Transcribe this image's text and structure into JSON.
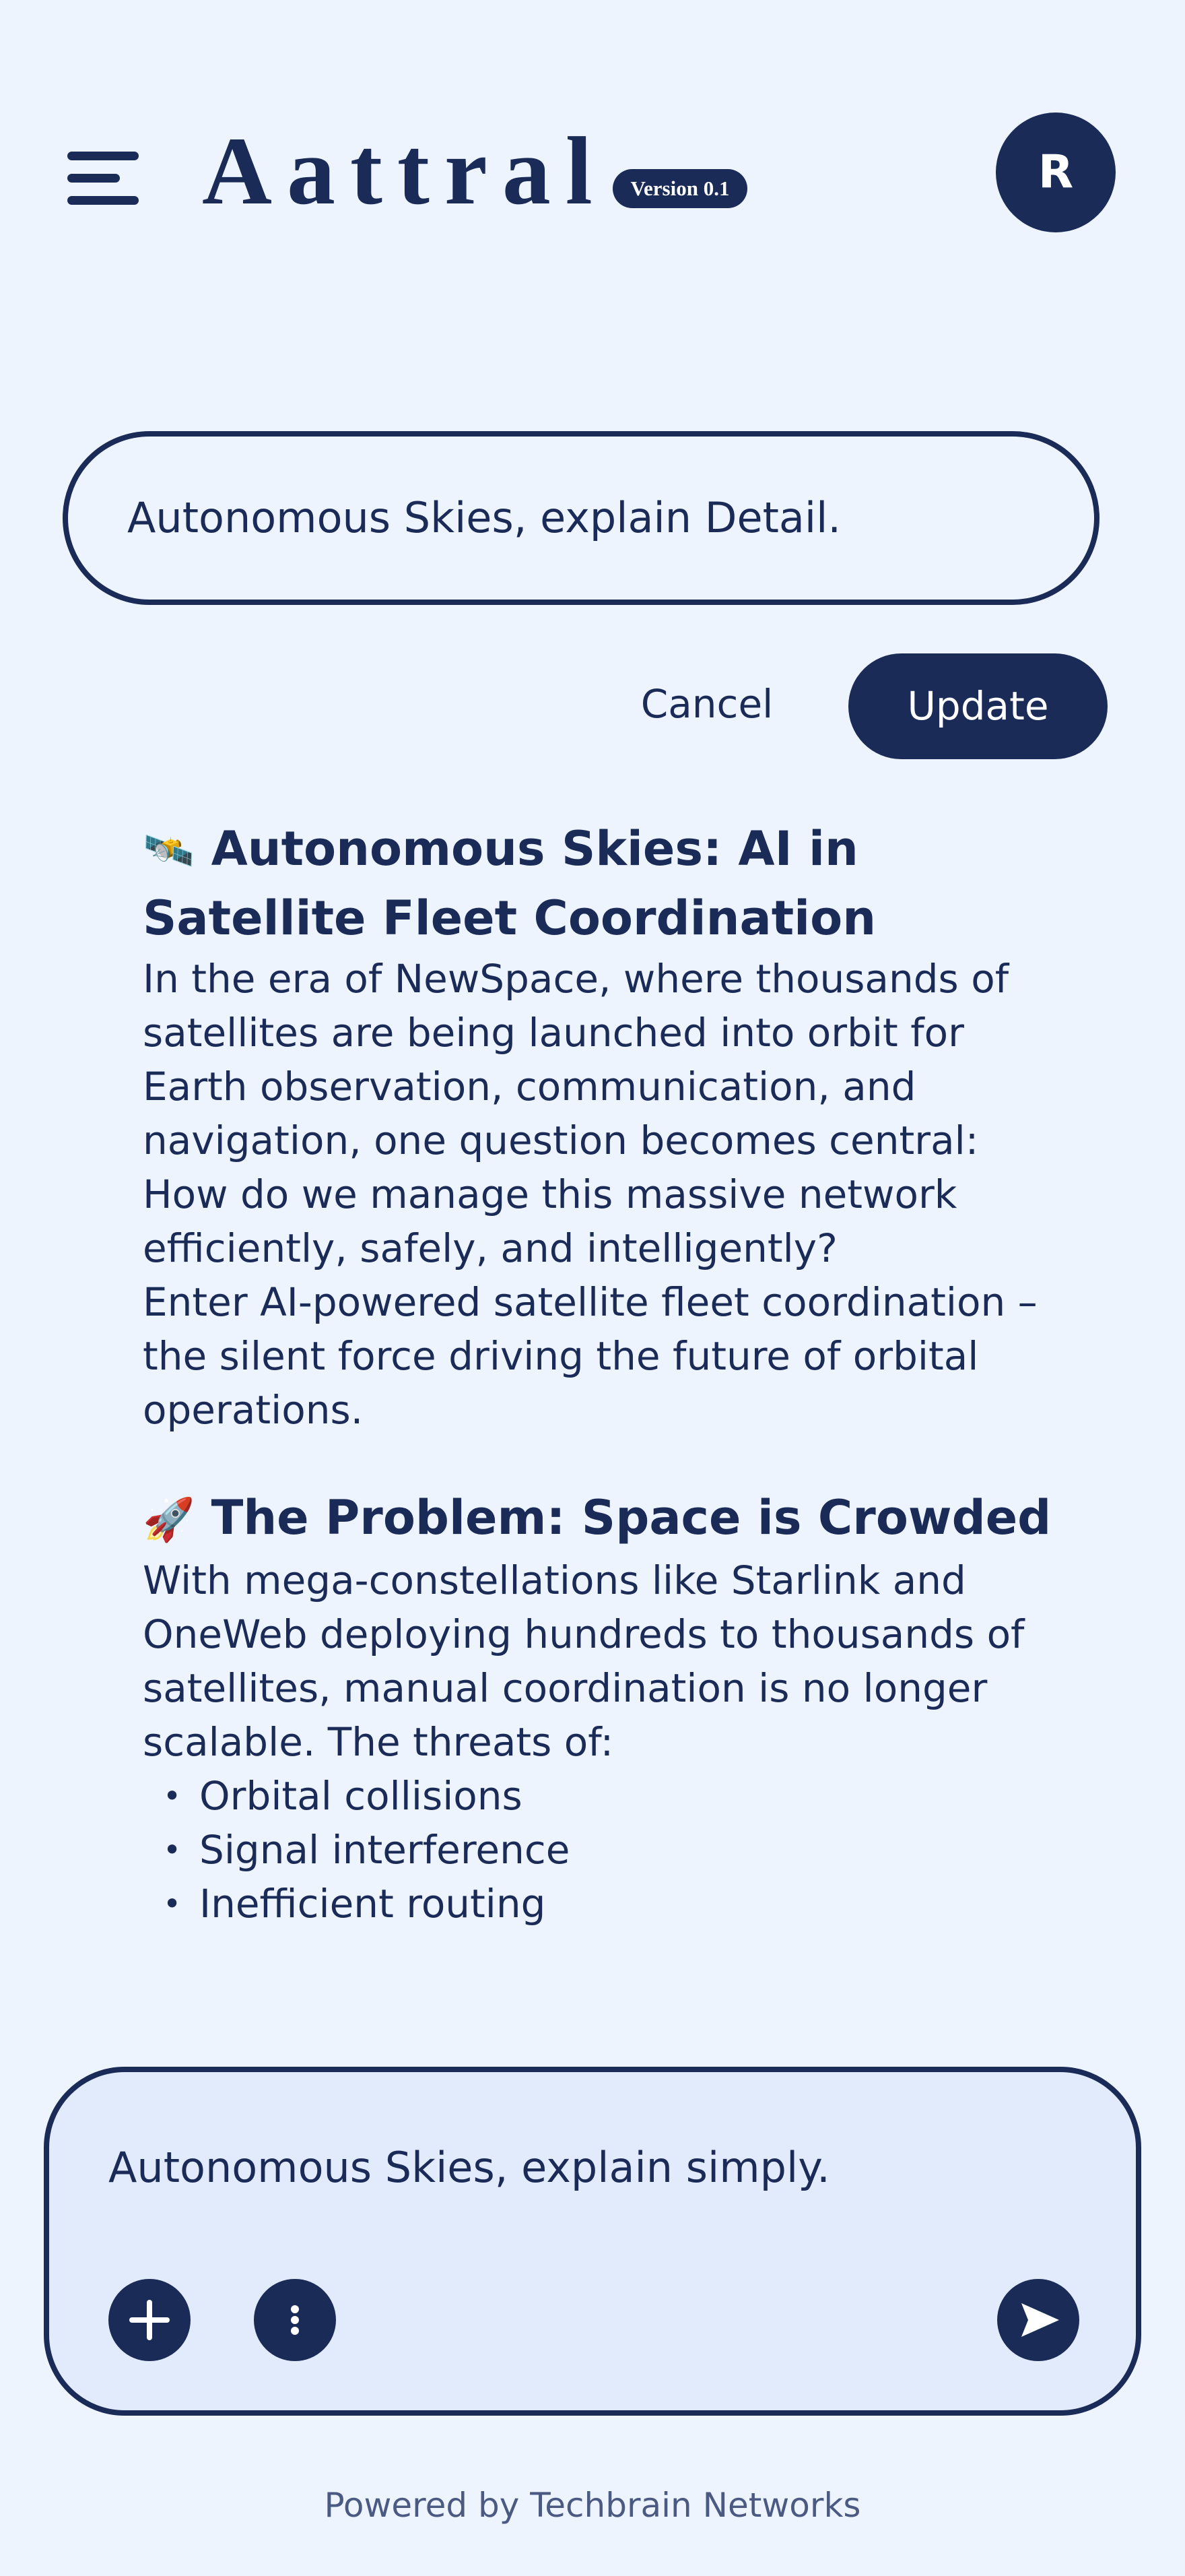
{
  "header": {
    "menu_icon": "hamburger-menu-icon",
    "brand": "Aattral",
    "version": "Version 0.1",
    "avatar_initial": "R"
  },
  "edit": {
    "prompt": "Autonomous Skies, explain Detail.",
    "cancel_label": "Cancel",
    "update_label": "Update"
  },
  "article": {
    "sections": [
      {
        "emoji": "🛰️",
        "heading": "Autonomous Skies: AI in Satellite Fleet Coordination",
        "paragraphs": [
          "In the era of NewSpace, where thousands of satellites are being launched into orbit for Earth observation, communication, and navigation, one question becomes central: How do we manage this massive network efficiently, safely, and intelligently?",
          "Enter AI-powered satellite fleet coordination – the silent force driving the future of orbital operations."
        ]
      },
      {
        "emoji": "🚀",
        "heading": "The Problem: Space is Crowded",
        "paragraphs": [
          "With mega-constellations like Starlink and OneWeb deploying hundreds to thousands of satellites, manual coordination is no longer scalable. The threats of:"
        ],
        "bullets": [
          "Orbital collisions",
          "Signal interference",
          "Inefficient routing"
        ]
      }
    ]
  },
  "composer": {
    "value": "Autonomous Skies, explain simply.",
    "add_icon": "plus-icon",
    "more_icon": "more-vertical-icon",
    "send_icon": "send-icon"
  },
  "footer": {
    "text": "Powered by Techbrain Networks"
  },
  "colors": {
    "background": "#eef4fd",
    "primary": "#1b2b58",
    "composer_bg": "#e2ebfb",
    "footer_text": "#4b5a82"
  }
}
